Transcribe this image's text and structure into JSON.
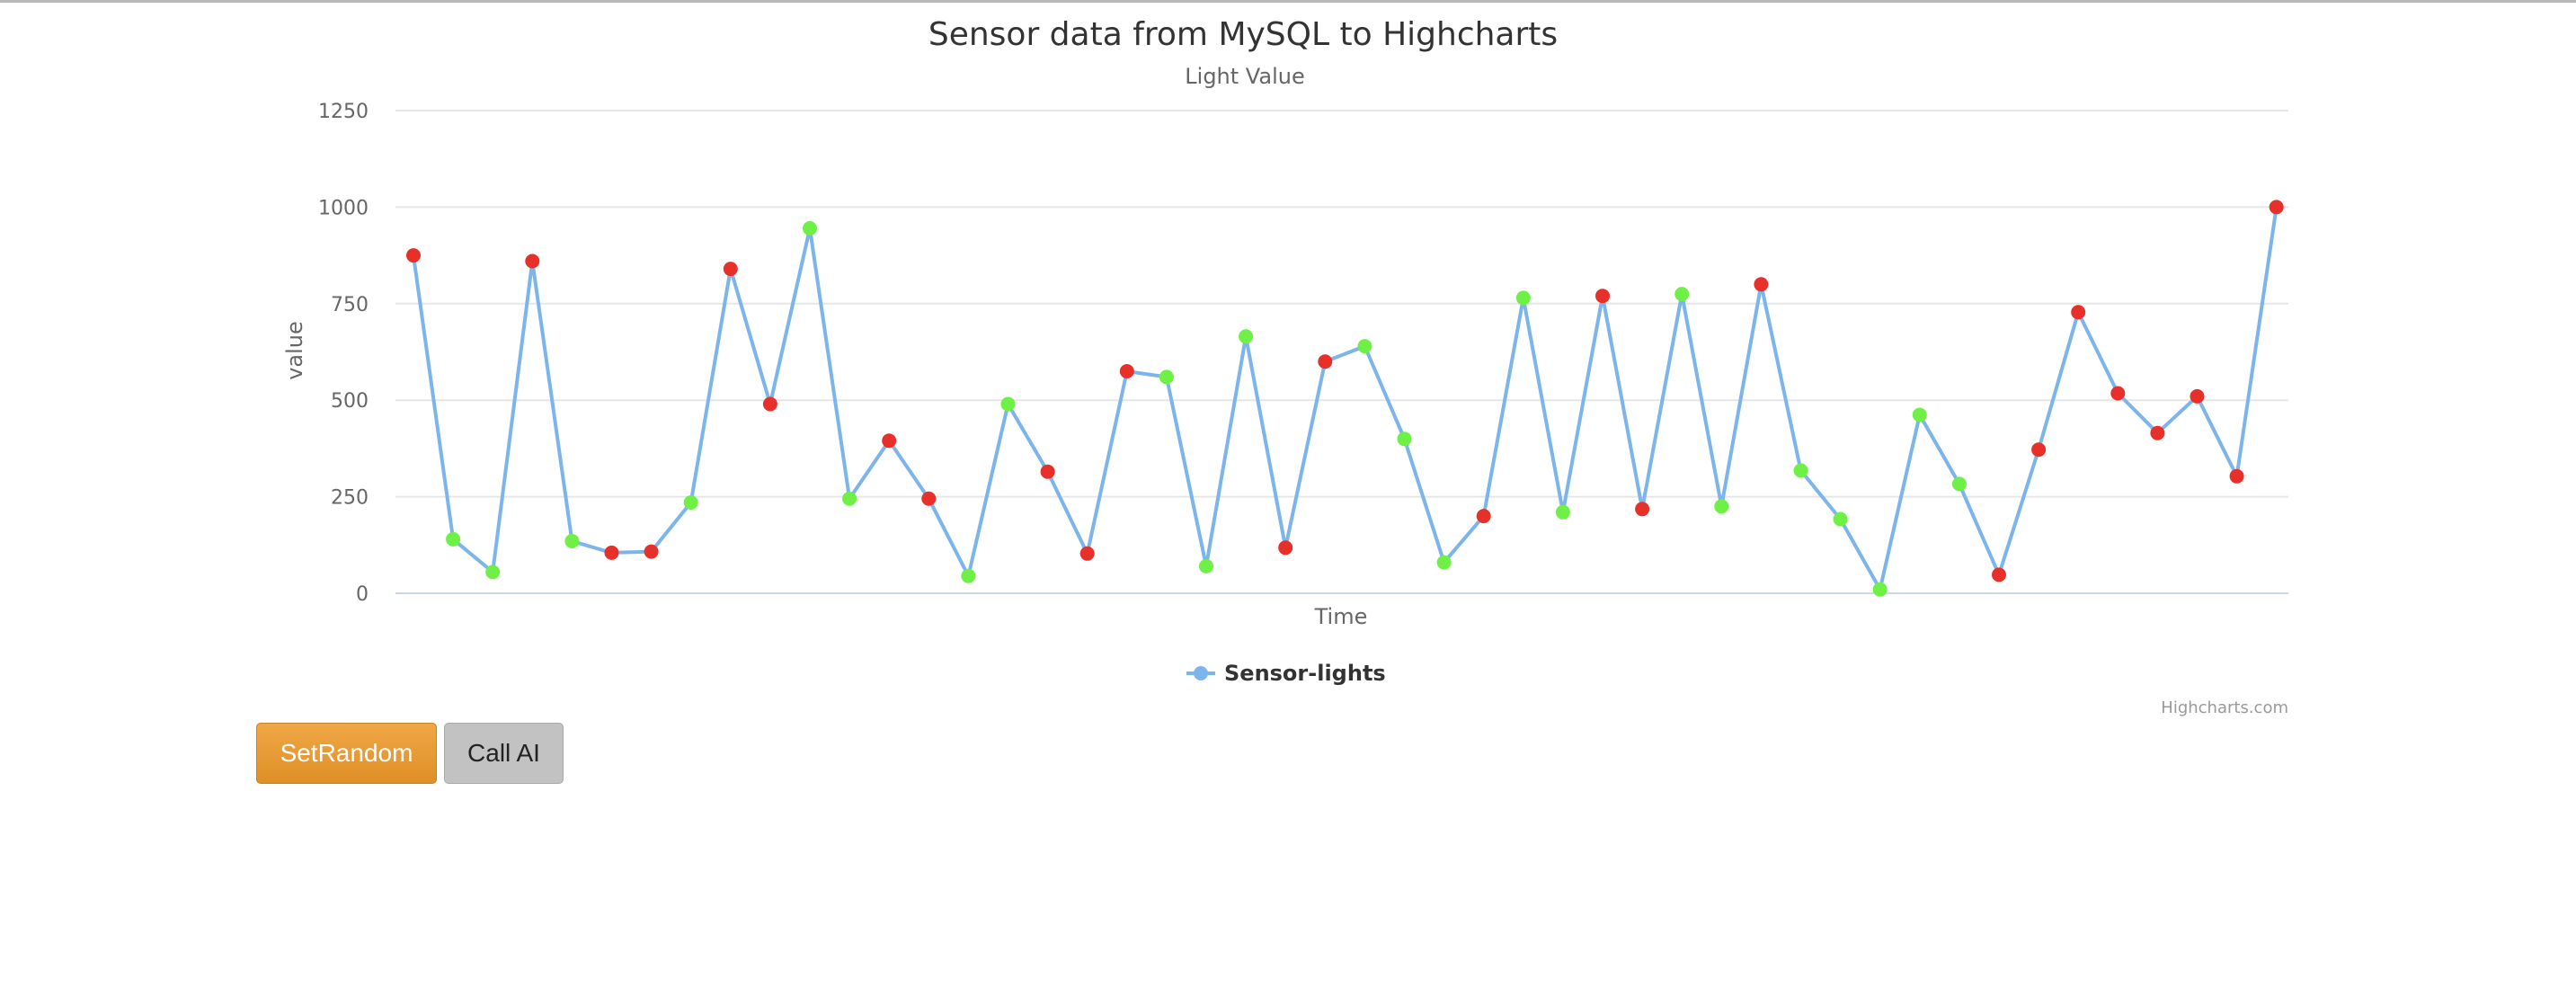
{
  "chart_data": {
    "type": "line",
    "title": "Sensor data from MySQL to Highcharts",
    "subtitle": "Light Value",
    "xlabel": "Time",
    "ylabel": "value",
    "ylim": [
      0,
      1250
    ],
    "yticks": [
      "0",
      "250",
      "500",
      "750",
      "1000",
      "1250"
    ],
    "grid": true,
    "legend_position": "bottom-center",
    "credits": "Highcharts.com",
    "series": [
      {
        "name": "Sensor-lights",
        "color": "#7cb5ec",
        "values": [
          875,
          140,
          55,
          860,
          135,
          105,
          108,
          235,
          840,
          490,
          945,
          245,
          395,
          245,
          45,
          490,
          315,
          103,
          575,
          560,
          70,
          665,
          118,
          600,
          640,
          400,
          80,
          200,
          765,
          210,
          770,
          218,
          775,
          225,
          800,
          318,
          192,
          10,
          462,
          283,
          48,
          372,
          728,
          518,
          415,
          510,
          303,
          1000
        ],
        "marker_colors": [
          "red",
          "green",
          "green",
          "red",
          "green",
          "red",
          "red",
          "green",
          "red",
          "red",
          "green",
          "green",
          "red",
          "red",
          "green",
          "green",
          "red",
          "red",
          "red",
          "green",
          "green",
          "green",
          "red",
          "red",
          "green",
          "green",
          "green",
          "red",
          "green",
          "green",
          "red",
          "red",
          "green",
          "green",
          "red",
          "green",
          "green",
          "green",
          "green",
          "green",
          "red",
          "red",
          "red",
          "red",
          "red",
          "red",
          "red",
          "red"
        ]
      }
    ],
    "palette": {
      "red": "#e8302a",
      "green": "#6ef047",
      "grid": "#e6e6e6",
      "axis": "#ccd6eb"
    }
  },
  "buttons": {
    "set_random": "SetRandom",
    "call_ai": "Call AI"
  }
}
